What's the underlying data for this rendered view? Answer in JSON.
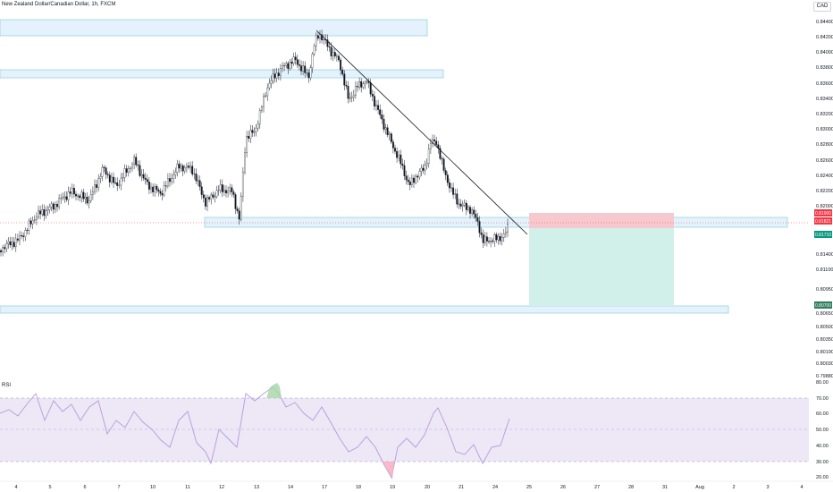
{
  "header": {
    "symbol_title": "New Zealand Dollar/Canadian Dollar, 1h, FXCM",
    "currency": "CAD"
  },
  "price_axis": {
    "labels": [
      "0.84400",
      "0.84200",
      "0.84000",
      "0.83800",
      "0.83600",
      "0.83400",
      "0.83200",
      "0.83000",
      "0.82800",
      "0.82600",
      "0.82400",
      "0.82200",
      "0.82000",
      "0.81400",
      "0.81100",
      "0.80950",
      "0.80650",
      "0.80500",
      "0.80350",
      "0.80190",
      "0.80030",
      "0.79880"
    ],
    "tags": [
      {
        "text": "0.81900",
        "color": "#f23645"
      },
      {
        "text": "0.81821",
        "color": "#f23645"
      },
      {
        "text": "0.81710",
        "color": "#089981"
      },
      {
        "text": "0.80700",
        "color": "#2e7d5b"
      }
    ]
  },
  "rsi_panel": {
    "label": "RSI",
    "axis_labels": [
      "80.00",
      "70.00",
      "60.00",
      "50.00",
      "40.00",
      "30.00",
      "20.00"
    ],
    "upper_band": 70,
    "lower_band": 30
  },
  "time_axis": {
    "labels": [
      "4",
      "5",
      "6",
      "7",
      "10",
      "11",
      "12",
      "13",
      "14",
      "17",
      "18",
      "19",
      "20",
      "21",
      "24",
      "25",
      "26",
      "27",
      "28",
      "31",
      "Aug",
      "2",
      "3",
      "4"
    ]
  },
  "colors": {
    "candle": "#131722",
    "zone_fill": "#e3f2fd",
    "zone_border": "#9bd3d8",
    "stop_zone": "#f7c9cf",
    "target_zone": "#d1f0e9",
    "rsi_line": "#b39ddb",
    "rsi_band": "#ede7f6",
    "trendline": "#131722",
    "current_price_line": "#f23645"
  },
  "chart_data": {
    "type": "line",
    "title": "New Zealand Dollar/Canadian Dollar, 1h, FXCM",
    "xlabel": "",
    "ylabel": "",
    "ylim": [
      0.7988,
      0.8448
    ],
    "x": [
      "4",
      "5",
      "6",
      "7",
      "10",
      "11",
      "12",
      "13",
      "14",
      "17",
      "18",
      "19",
      "20",
      "21",
      "24"
    ],
    "series": [
      {
        "values": [
          0.8148,
          0.8171,
          0.8198,
          0.8228,
          0.8238,
          0.822,
          0.8235,
          0.818,
          0.8388,
          0.8405,
          0.8418,
          0.8388,
          0.8312,
          0.825,
          0.819
        ]
      }
    ]
  }
}
